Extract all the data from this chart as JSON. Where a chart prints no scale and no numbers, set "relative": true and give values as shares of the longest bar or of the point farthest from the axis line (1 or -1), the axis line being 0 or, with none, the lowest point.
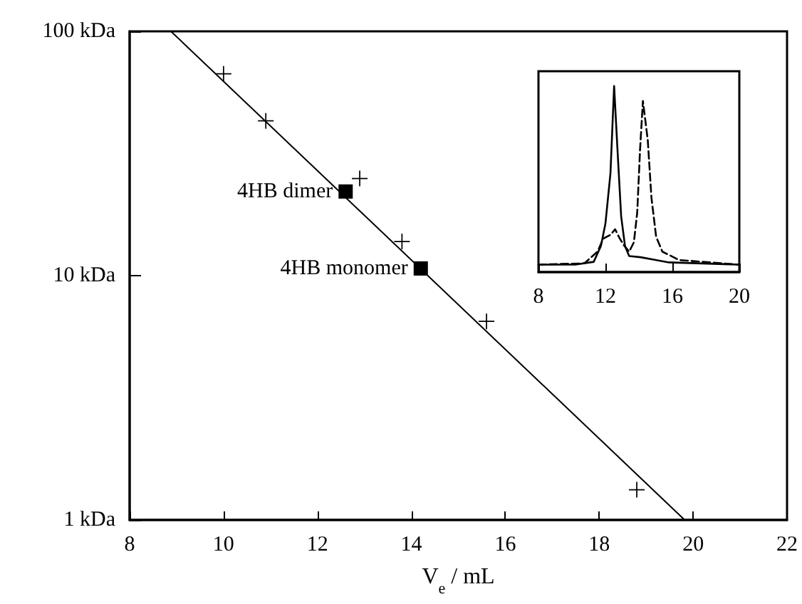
{
  "chart_data": [
    {
      "type": "scatter",
      "xlabel": "V$_{e}$ / mL",
      "log": "y",
      "xlim": [
        8,
        22
      ],
      "xticks": [
        8,
        10,
        12,
        14,
        16,
        18,
        20,
        22
      ],
      "ylim": [
        1,
        100
      ],
      "yticks": [
        {
          "value": 1,
          "label": "1 kDa"
        },
        {
          "value": 10,
          "label": "10 kDa"
        },
        {
          "value": 100,
          "label": "100 kDa"
        }
      ],
      "annotations": [
        {
          "text": "4HB dimer",
          "x": 12.6,
          "y": 22.1
        },
        {
          "text": "4HB monomer",
          "x": 14.2,
          "y": 10.7
        }
      ],
      "series": [
        {
          "color": "#000000",
          "marker": "cross",
          "x": [
            10.0,
            10.9,
            12.9,
            13.8,
            15.6,
            18.8
          ],
          "values": [
            67,
            43,
            25,
            13.8,
            6.5,
            1.33
          ]
        },
        {
          "color": "#000000",
          "marker": "square",
          "x": [
            12.6,
            14.2
          ],
          "values": [
            22.1,
            10.7
          ]
        },
        {
          "type": "line",
          "color": "#000000",
          "marker": "none",
          "line_style": "solid",
          "x": [
            8.88,
            19.82
          ],
          "values": [
            100,
            1
          ]
        }
      ]
    },
    {
      "type": "line",
      "relative": true,
      "xlim": [
        8,
        20
      ],
      "xticks": [
        8,
        12,
        16,
        20
      ],
      "series": [
        {
          "color": "#000000",
          "line_style": "solid",
          "x": [
            8,
            10.2,
            11.3,
            11.73,
            12.0,
            12.3,
            12.52,
            12.72,
            12.94,
            13.17,
            13.42,
            14.1,
            15.0,
            15.8,
            20
          ],
          "values": [
            0.04,
            0.04,
            0.055,
            0.14,
            0.26,
            0.53,
            1.0,
            0.66,
            0.3,
            0.14,
            0.086,
            0.08,
            0.065,
            0.052,
            0.04
          ]
        },
        {
          "color": "#000000",
          "line_style": "dashed",
          "x": [
            8,
            10.74,
            11.53,
            11.87,
            12.3,
            12.58,
            12.86,
            13.14,
            13.42,
            13.7,
            13.9,
            14.07,
            14.24,
            14.3,
            14.53,
            14.75,
            15.03,
            15.4,
            16.4,
            20
          ],
          "values": [
            0.04,
            0.047,
            0.11,
            0.18,
            0.2,
            0.23,
            0.18,
            0.14,
            0.11,
            0.16,
            0.32,
            0.66,
            0.92,
            0.92,
            0.71,
            0.4,
            0.19,
            0.11,
            0.065,
            0.04
          ]
        }
      ]
    }
  ]
}
